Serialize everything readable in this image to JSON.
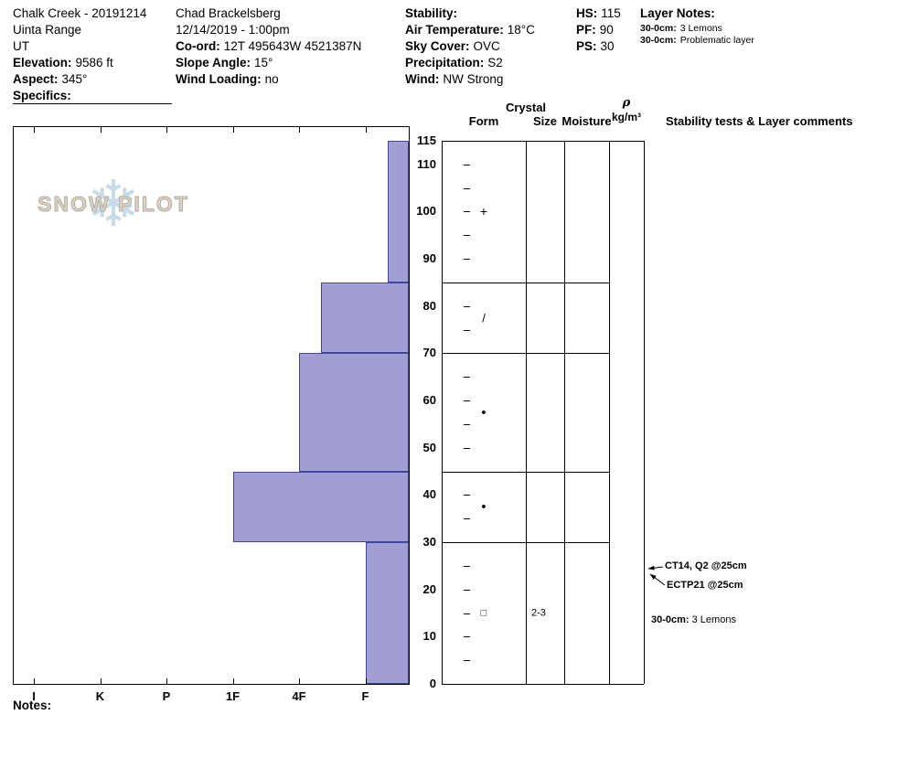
{
  "header": {
    "site": {
      "title": "Chalk Creek - 20191214",
      "range": "Uinta Range",
      "state": "UT",
      "elevation_label": "Elevation:",
      "elevation": "9586 ft",
      "aspect_label": "Aspect:",
      "aspect": "345°",
      "specifics_label": "Specifics:"
    },
    "observer": {
      "name": "Chad Brackelsberg",
      "datetime": "12/14/2019 - 1:00pm",
      "coord_label": "Co-ord:",
      "coord": "12T 495643W 4521387N",
      "slope_angle_label": "Slope Angle:",
      "slope_angle": "15°",
      "wind_loading_label": "Wind Loading:",
      "wind_loading": "no"
    },
    "weather": {
      "stability_label": "Stability:",
      "air_temp_label": "Air Temperature:",
      "air_temp": "18°C",
      "sky_label": "Sky Cover:",
      "sky": "OVC",
      "precip_label": "Precipitation:",
      "precip": "S2",
      "wind_label": "Wind:",
      "wind": "NW Strong"
    },
    "snow_depths": {
      "hs_label": "HS:",
      "hs": "115",
      "pf_label": "PF:",
      "pf": "90",
      "ps_label": "PS:",
      "ps": "30"
    },
    "layer_notes": {
      "title": "Layer Notes:",
      "entries": [
        {
          "label": "30-0cm:",
          "text": "3 Lemons"
        },
        {
          "label": "30-0cm:",
          "text": "Problematic layer"
        }
      ]
    }
  },
  "watermark": "SNOW PILOT",
  "icons": {
    "snowflake": "❄"
  },
  "notes_label": "Notes:",
  "column_headers": {
    "crystal": "Crystal",
    "form": "Form",
    "size": "Size",
    "moisture": "Moisture",
    "rho": "ρ",
    "rho_unit": "kg/m³",
    "comments": "Stability tests & Layer comments"
  },
  "chart_data": {
    "type": "bar",
    "title": "Snow pit hand-hardness profile",
    "orientation": "horizontal bars extending left from right edge; longer bar = harder layer",
    "depth_axis": {
      "unit": "cm",
      "min": 0,
      "max": 115,
      "tick_labels": [
        115,
        110,
        100,
        90,
        80,
        70,
        60,
        50,
        40,
        30,
        20,
        10,
        0
      ],
      "minor_tick_cm": 5
    },
    "hardness_axis": {
      "categories": [
        "I",
        "K",
        "P",
        "1F",
        "4F",
        "F"
      ],
      "note": "hand hardness, hardest (I) at left, softest (F) at right"
    },
    "layers": [
      {
        "top_cm": 115,
        "bottom_cm": 85,
        "hardness": "F-",
        "grain_form": "PP",
        "glyph": "+"
      },
      {
        "top_cm": 85,
        "bottom_cm": 70,
        "hardness": "4F-",
        "grain_form": "DF",
        "glyph": "/"
      },
      {
        "top_cm": 70,
        "bottom_cm": 45,
        "hardness": "4F",
        "grain_form": "RG",
        "glyph": "●"
      },
      {
        "top_cm": 45,
        "bottom_cm": 30,
        "hardness": "1F",
        "grain_form": "RG",
        "glyph": "●"
      },
      {
        "top_cm": 30,
        "bottom_cm": 0,
        "hardness": "F",
        "grain_form": "FC",
        "glyph": "□",
        "grain_size_mm": "2-3"
      }
    ],
    "stability_tests": [
      {
        "label": "CT14, Q2 @25cm",
        "depth_cm": 25
      },
      {
        "label": "ECTP21 @25cm",
        "depth_cm": 25
      }
    ],
    "layer_comments": [
      {
        "label": "30-0cm:",
        "text": "3 Lemons",
        "depth_cm": 15
      }
    ],
    "colors": {
      "bar_fill": "#a09ed3",
      "bar_border": "#4343a0"
    }
  }
}
